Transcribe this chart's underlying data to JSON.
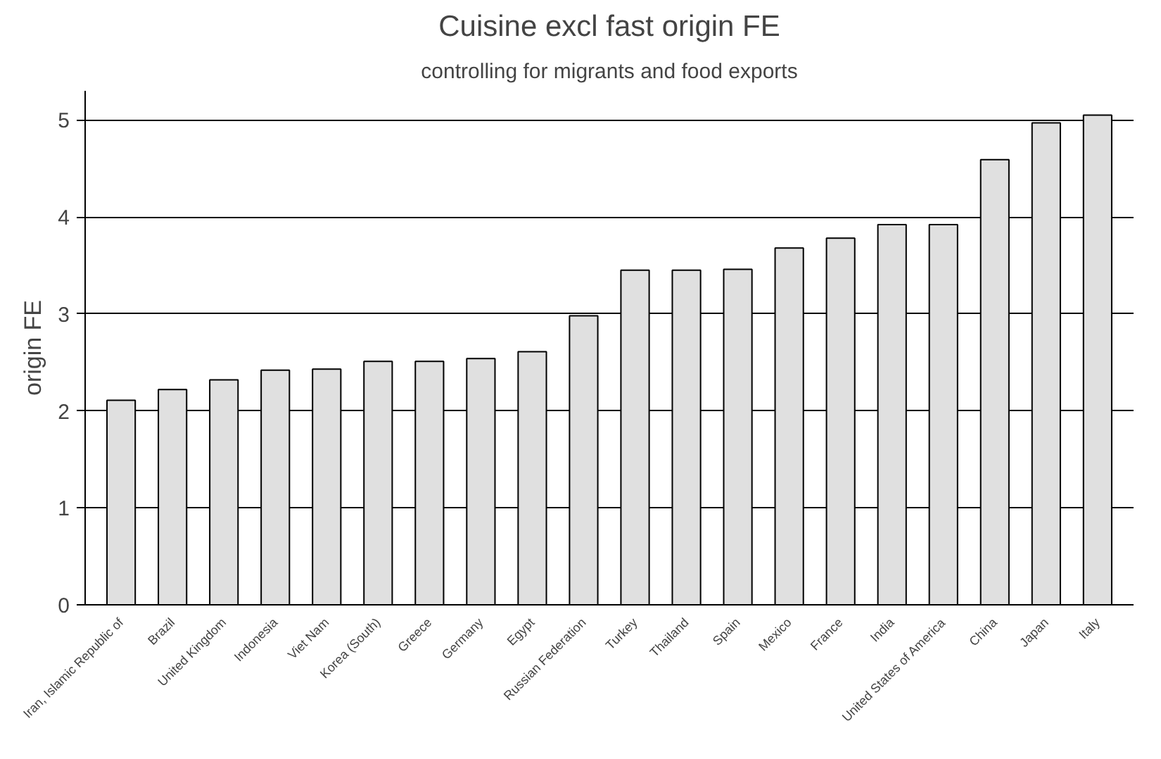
{
  "chart_data": {
    "type": "bar",
    "title": "Cuisine excl fast origin FE",
    "subtitle": "controlling for migrants and food exports",
    "ylabel": "origin FE",
    "categories": [
      "Iran, Islamic Republic of",
      "Brazil",
      "United Kingdom",
      "Indonesia",
      "Viet Nam",
      "Korea (South)",
      "Greece",
      "Germany",
      "Egypt",
      "Russian Federation",
      "Turkey",
      "Thailand",
      "Spain",
      "Mexico",
      "France",
      "India",
      "United States of America",
      "China",
      "Japan",
      "Italy"
    ],
    "values": [
      2.11,
      2.22,
      2.32,
      2.42,
      2.43,
      2.51,
      2.51,
      2.54,
      2.61,
      2.98,
      3.45,
      3.45,
      3.46,
      3.68,
      3.78,
      3.92,
      3.92,
      4.59,
      4.97,
      5.05
    ],
    "color": "#e0e0e0",
    "ylim": [
      0,
      5.3
    ],
    "yticks": [
      0,
      1,
      2,
      3,
      4,
      5
    ],
    "grid": "y"
  }
}
